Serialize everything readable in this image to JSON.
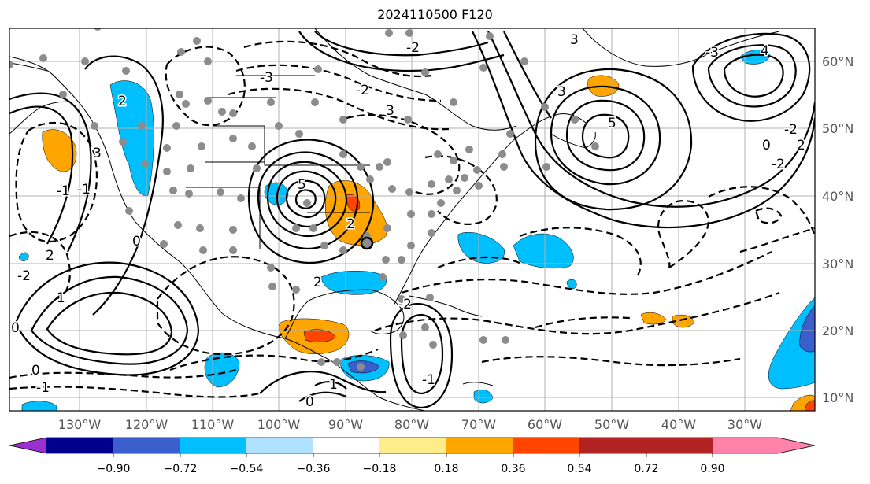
{
  "title": "2024110500 F120",
  "lon_labels": [
    "130°W",
    "120°W",
    "110°W",
    "100°W",
    "90°W",
    "80°W",
    "70°W",
    "60°W",
    "50°W",
    "40°W",
    "30°W"
  ],
  "lat_labels": [
    "60°N",
    "50°N",
    "40°N",
    "30°N",
    "20°N",
    "10°N"
  ],
  "colorbar": {
    "ticks": [
      "−0.90",
      "−0.72",
      "−0.54",
      "−0.36",
      "−0.18",
      "0.18",
      "0.36",
      "0.54",
      "0.72",
      "0.90"
    ],
    "colors": [
      "#9b30d0",
      "#00008b",
      "#3a5fcd",
      "#00bfff",
      "#b0e2ff",
      "#ffffff",
      "#ffec8b",
      "#ffa500",
      "#ff4500",
      "#b22222",
      "#ff82ab"
    ]
  },
  "shading": {
    "positive_colors": [
      "#ffa500",
      "#ff4500"
    ],
    "negative_colors": [
      "#00bfff",
      "#3a5fcd"
    ]
  },
  "contour_labels": [
    "2",
    "3",
    "-2",
    "-2",
    "3",
    "5",
    "5",
    "3",
    "0",
    "2",
    "-2",
    "-1",
    "2",
    "0",
    "-2",
    "1",
    "0",
    "-1",
    "0",
    "1",
    "-1",
    "-3",
    "-3",
    "3",
    "4",
    "-2",
    "0",
    "-2",
    "2",
    "-1",
    "2"
  ],
  "station_markers": "gray-dots"
}
